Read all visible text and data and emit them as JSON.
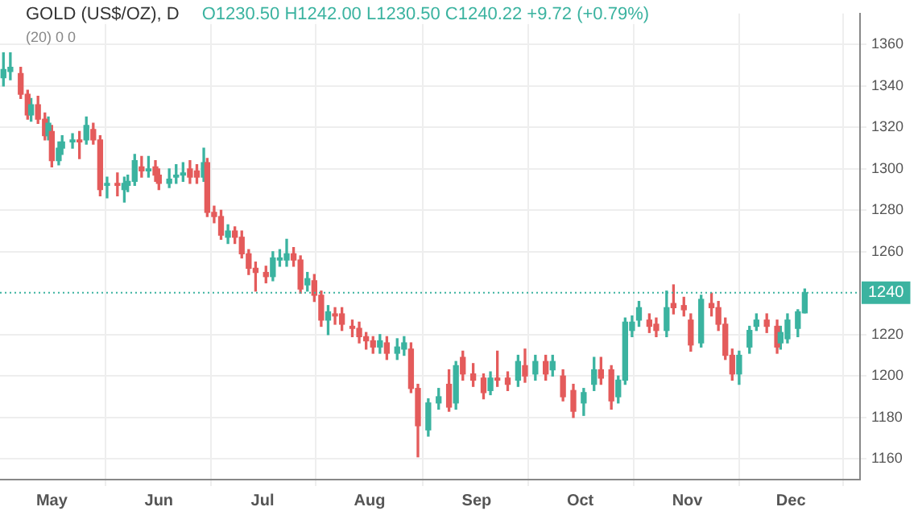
{
  "chart_data": {
    "type": "candlestick",
    "title": "GOLD (US$/OZ), D",
    "annotations": [
      "O1230.50 H1242.00 L1230.50 C1240.22 +9.72 (+0.79%)",
      "(20) 0 0"
    ],
    "x": [
      "--04-17",
      "--04-19",
      "--04-22",
      "--04-24",
      "--04-25",
      "--04-27",
      "--04-29",
      "--04-30",
      "--05-01",
      "--05-03",
      "--05-04",
      "--05-07",
      "--05-09",
      "--05-11",
      "--05-13",
      "--05-15",
      "--05-17",
      "--05-20",
      "--05-22",
      "--05-23",
      "--05-25",
      "--05-27",
      "--05-29",
      "--05-31",
      "--06-01",
      "--06-04",
      "--06-06",
      "--06-08",
      "--06-10",
      "--06-12",
      "--06-14",
      "--06-15",
      "--06-17",
      "--06-19",
      "--06-21",
      "--06-23",
      "--06-25",
      "--06-27",
      "--06-29",
      "--07-02",
      "--07-04",
      "--07-06",
      "--07-08",
      "--07-10",
      "--07-12",
      "--07-14",
      "--07-16",
      "--07-18",
      "--07-20",
      "--07-22",
      "--07-24",
      "--07-27",
      "--07-29",
      "--07-31",
      "--08-02",
      "--08-04",
      "--08-06",
      "--08-09",
      "--08-11",
      "--08-13",
      "--08-15",
      "--08-18",
      "--08-21",
      "--08-24",
      "--08-26",
      "--08-28",
      "--08-31",
      "--09-03",
      "--09-05",
      "--09-07",
      "--09-10",
      "--09-13",
      "--09-15",
      "--09-18",
      "--09-21",
      "--09-23",
      "--09-26",
      "--09-29",
      "--10-02",
      "--10-05",
      "--10-07",
      "--10-10",
      "--10-12",
      "--10-14",
      "--10-16",
      "--10-18",
      "--10-21",
      "--10-23",
      "--10-26",
      "--10-28",
      "--10-31",
      "--11-02",
      "--11-05",
      "--11-08",
      "--11-10",
      "--11-12",
      "--11-14",
      "--11-16",
      "--11-19",
      "--11-21",
      "--11-24",
      "--11-27",
      "--11-28",
      "--11-30",
      "--12-03",
      "--12-05"
    ],
    "ohlc": [
      [
        1344,
        1356,
        1340,
        1348
      ],
      [
        1347,
        1356,
        1343,
        1349
      ],
      [
        1346,
        1349,
        1334,
        1336
      ],
      [
        1336,
        1338,
        1324,
        1326
      ],
      [
        1326,
        1334,
        1323,
        1331
      ],
      [
        1331,
        1335,
        1322,
        1324
      ],
      [
        1324,
        1327,
        1314,
        1316
      ],
      [
        1316,
        1325,
        1314,
        1322
      ],
      [
        1318,
        1321,
        1301,
        1304
      ],
      [
        1304,
        1313,
        1302,
        1310
      ],
      [
        1310,
        1316,
        1307,
        1313
      ],
      [
        1313,
        1317,
        1310,
        1314
      ],
      [
        1314,
        1318,
        1305,
        1313
      ],
      [
        1314,
        1325,
        1312,
        1321
      ],
      [
        1319,
        1322,
        1312,
        1314
      ],
      [
        1314,
        1316,
        1287,
        1290
      ],
      [
        1292,
        1296,
        1286,
        1293
      ],
      [
        1293,
        1298,
        1287,
        1292
      ],
      [
        1290,
        1296,
        1284,
        1293
      ],
      [
        1292,
        1297,
        1289,
        1294
      ],
      [
        1294,
        1307,
        1292,
        1304
      ],
      [
        1301,
        1306,
        1296,
        1299
      ],
      [
        1299,
        1306,
        1296,
        1300
      ],
      [
        1301,
        1304,
        1294,
        1297
      ],
      [
        1297,
        1300,
        1290,
        1293
      ],
      [
        1293,
        1300,
        1291,
        1295
      ],
      [
        1296,
        1302,
        1293,
        1297
      ],
      [
        1297,
        1303,
        1294,
        1298
      ],
      [
        1300,
        1304,
        1293,
        1296
      ],
      [
        1299,
        1302,
        1293,
        1296
      ],
      [
        1296,
        1310,
        1294,
        1303
      ],
      [
        1303,
        1305,
        1277,
        1279
      ],
      [
        1279,
        1282,
        1274,
        1277
      ],
      [
        1277,
        1280,
        1266,
        1268
      ],
      [
        1267,
        1273,
        1264,
        1270
      ],
      [
        1270,
        1272,
        1264,
        1267
      ],
      [
        1267,
        1270,
        1257,
        1259
      ],
      [
        1259,
        1261,
        1249,
        1252
      ],
      [
        1252,
        1255,
        1241,
        1250
      ],
      [
        1250,
        1253,
        1245,
        1248
      ],
      [
        1248,
        1260,
        1246,
        1257
      ],
      [
        1256,
        1261,
        1253,
        1257
      ],
      [
        1256,
        1266,
        1253,
        1259
      ],
      [
        1259,
        1262,
        1253,
        1256
      ],
      [
        1256,
        1258,
        1240,
        1242
      ],
      [
        1244,
        1250,
        1241,
        1247
      ],
      [
        1246,
        1249,
        1236,
        1239
      ],
      [
        1239,
        1241,
        1224,
        1227
      ],
      [
        1227,
        1234,
        1220,
        1231
      ],
      [
        1230,
        1233,
        1225,
        1229
      ],
      [
        1230,
        1233,
        1222,
        1225
      ],
      [
        1224,
        1227,
        1219,
        1223
      ],
      [
        1223,
        1226,
        1216,
        1219
      ],
      [
        1219,
        1221,
        1213,
        1217
      ],
      [
        1217,
        1219,
        1211,
        1214
      ],
      [
        1214,
        1220,
        1211,
        1217
      ],
      [
        1216,
        1219,
        1208,
        1211
      ],
      [
        1211,
        1218,
        1208,
        1214
      ],
      [
        1213,
        1219,
        1210,
        1216
      ],
      [
        1213,
        1216,
        1192,
        1194
      ],
      [
        1194,
        1196,
        1161,
        1176
      ],
      [
        1174,
        1189,
        1171,
        1187
      ],
      [
        1187,
        1194,
        1184,
        1190
      ],
      [
        1196,
        1203,
        1183,
        1185
      ],
      [
        1187,
        1207,
        1184,
        1205
      ],
      [
        1209,
        1212,
        1198,
        1201
      ],
      [
        1201,
        1206,
        1195,
        1198
      ],
      [
        1199,
        1201,
        1189,
        1192
      ],
      [
        1193,
        1202,
        1191,
        1199
      ],
      [
        1199,
        1212,
        1195,
        1198
      ],
      [
        1199,
        1202,
        1193,
        1196
      ],
      [
        1198,
        1210,
        1195,
        1207
      ],
      [
        1205,
        1213,
        1197,
        1200
      ],
      [
        1201,
        1210,
        1198,
        1207
      ],
      [
        1207,
        1210,
        1198,
        1201
      ],
      [
        1203,
        1210,
        1200,
        1207
      ],
      [
        1200,
        1203,
        1188,
        1190
      ],
      [
        1193,
        1196,
        1180,
        1183
      ],
      [
        1187,
        1194,
        1181,
        1192
      ],
      [
        1196,
        1209,
        1193,
        1203
      ],
      [
        1203,
        1209,
        1196,
        1199
      ],
      [
        1203,
        1205,
        1184,
        1188
      ],
      [
        1190,
        1200,
        1187,
        1198
      ],
      [
        1198,
        1228,
        1196,
        1226
      ],
      [
        1222,
        1229,
        1219,
        1226
      ],
      [
        1227,
        1236,
        1224,
        1233
      ],
      [
        1227,
        1230,
        1221,
        1224
      ],
      [
        1225,
        1228,
        1219,
        1222
      ],
      [
        1222,
        1241,
        1219,
        1233
      ],
      [
        1235,
        1244,
        1230,
        1233
      ],
      [
        1234,
        1238,
        1229,
        1232
      ],
      [
        1227,
        1230,
        1212,
        1215
      ],
      [
        1216,
        1239,
        1214,
        1237
      ],
      [
        1235,
        1240,
        1229,
        1233
      ],
      [
        1233,
        1236,
        1222,
        1225
      ],
      [
        1225,
        1228,
        1208,
        1210
      ],
      [
        1210,
        1213,
        1198,
        1201
      ],
      [
        1201,
        1212,
        1196,
        1210
      ],
      [
        1214,
        1224,
        1211,
        1222
      ],
      [
        1224,
        1230,
        1222,
        1227
      ],
      [
        1227,
        1230,
        1221,
        1224
      ],
      [
        1224,
        1227,
        1211,
        1214
      ],
      [
        1216,
        1224,
        1213,
        1221
      ],
      [
        1218,
        1230,
        1216,
        1227
      ],
      [
        1223,
        1232,
        1219,
        1231
      ],
      [
        1230.5,
        1242,
        1230.5,
        1240.22
      ]
    ],
    "xlim": [
      "--04-16",
      "--12-21"
    ],
    "xticks": [
      {
        "value": "--05-01",
        "label": "May"
      },
      {
        "value": "--06-01",
        "label": "Jun"
      },
      {
        "value": "--07-01",
        "label": "Jul"
      },
      {
        "value": "--08-01",
        "label": "Aug"
      },
      {
        "value": "--09-01",
        "label": "Sep"
      },
      {
        "value": "--10-01",
        "label": "Oct"
      },
      {
        "value": "--11-01",
        "label": "Nov"
      },
      {
        "value": "--12-01",
        "label": "Dec"
      }
    ],
    "ylim": [
      1150,
      1375
    ],
    "yticks": [
      1160,
      1180,
      1200,
      1220,
      1260,
      1280,
      1300,
      1320,
      1340,
      1360
    ],
    "ref_lines": [
      {
        "axis": "y",
        "value": 1240.22,
        "label": "1240",
        "color": "#3bb3a0",
        "line_style": "dotted"
      }
    ],
    "grid": true,
    "legend": false
  }
}
